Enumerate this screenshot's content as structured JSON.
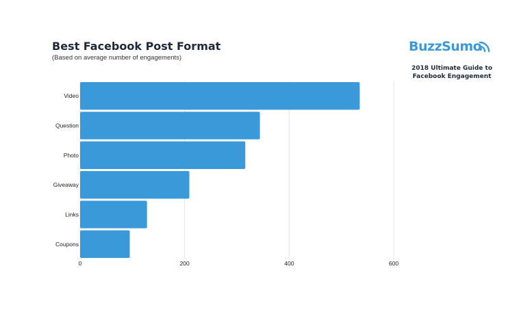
{
  "header": {
    "title": "Best Facebook Post Format",
    "subtitle": "(Based on average number of engagements)"
  },
  "brand": {
    "name": "BuzzSumo",
    "icon": "wifi-signal-icon",
    "color": "#3a9ad9",
    "guide_line1": "2018 Ultimate Guide to",
    "guide_line2": "Facebook Engagement"
  },
  "chart_data": {
    "type": "bar",
    "orientation": "horizontal",
    "categories": [
      "Video",
      "Question",
      "Photo",
      "Giveaway",
      "Links",
      "Coupons"
    ],
    "values": [
      535,
      344,
      316,
      209,
      128,
      95
    ],
    "xlim": [
      0,
      600
    ],
    "xticks": [
      0,
      200,
      400,
      600
    ],
    "grid": true,
    "bar_color": "#3a9ad9"
  }
}
